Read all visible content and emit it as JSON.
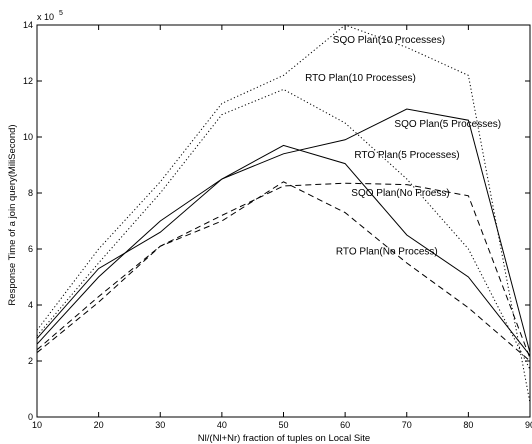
{
  "chart_data": {
    "type": "line",
    "title": "",
    "xlabel": "Nl/(Nl+Nr) fraction of tuples  on Local Site",
    "ylabel": "Response Time of a join query(MiliSecond)",
    "y_scale_label": "x 10",
    "y_scale_exponent": "5",
    "xlim": [
      10,
      90
    ],
    "ylim": [
      0,
      14
    ],
    "x_ticks": [
      "10",
      "20",
      "30",
      "40",
      "50",
      "60",
      "70",
      "80",
      "90"
    ],
    "y_ticks": [
      "0",
      "2",
      "4",
      "6",
      "8",
      "10",
      "12",
      "14"
    ],
    "grid": false,
    "legend": "none",
    "series": [
      {
        "name": "SQO Plan(10 Processes)",
        "style": "dotted",
        "color": "#000000",
        "x": [
          10,
          20,
          30,
          40,
          50,
          60,
          70,
          80,
          90
        ],
        "y": [
          3.1,
          6.0,
          8.4,
          11.2,
          12.2,
          14.0,
          13.2,
          12.2,
          0.5
        ]
      },
      {
        "name": "RTO Plan(10 Processes)",
        "style": "dotted",
        "color": "#000000",
        "x": [
          10,
          20,
          30,
          40,
          50,
          60,
          70,
          80,
          90
        ],
        "y": [
          2.9,
          5.5,
          8.0,
          10.8,
          11.7,
          10.5,
          8.5,
          6.0,
          1.7
        ]
      },
      {
        "name": "SQO Plan(5 Processes)",
        "style": "solid",
        "color": "#000000",
        "x": [
          10,
          20,
          30,
          40,
          50,
          60,
          70,
          80,
          90
        ],
        "y": [
          2.8,
          5.3,
          6.6,
          8.5,
          9.4,
          9.9,
          11.0,
          10.6,
          2.3
        ]
      },
      {
        "name": "RTO Plan(5 Processes)",
        "style": "solid",
        "color": "#000000",
        "x": [
          10,
          20,
          30,
          40,
          50,
          60,
          70,
          80,
          90
        ],
        "y": [
          2.6,
          5.0,
          7.0,
          8.5,
          9.7,
          9.05,
          6.5,
          5.0,
          2.2
        ]
      },
      {
        "name": "SQO Plan(No Proess)",
        "style": "dashed",
        "color": "#000000",
        "x": [
          10,
          20,
          30,
          40,
          50,
          60,
          70,
          80,
          90
        ],
        "y": [
          2.4,
          4.3,
          6.1,
          7.2,
          8.25,
          8.35,
          8.3,
          7.9,
          2.1
        ]
      },
      {
        "name": "RTO Plan(No Process)",
        "style": "dashed",
        "color": "#000000",
        "x": [
          10,
          20,
          30,
          40,
          50,
          60,
          70,
          80,
          90
        ],
        "y": [
          2.3,
          4.1,
          6.1,
          7.0,
          8.4,
          7.3,
          5.5,
          3.9,
          2.0
        ]
      }
    ],
    "annotations": [
      {
        "text": "SQO Plan(10 Processes)",
        "x": 58,
        "y": 13.35
      },
      {
        "text": "RTO Plan(10 Processes)",
        "x": 53.5,
        "y": 12.0
      },
      {
        "text": "SQO Plan(5 Processes)",
        "x": 68,
        "y": 10.35
      },
      {
        "text": "RTO Plan(5 Processes)",
        "x": 61.5,
        "y": 9.25
      },
      {
        "text": "SQO Plan(No Proess)",
        "x": 61,
        "y": 7.9
      },
      {
        "text": "RTO Plan(No Process)",
        "x": 58.5,
        "y": 5.8
      }
    ]
  }
}
